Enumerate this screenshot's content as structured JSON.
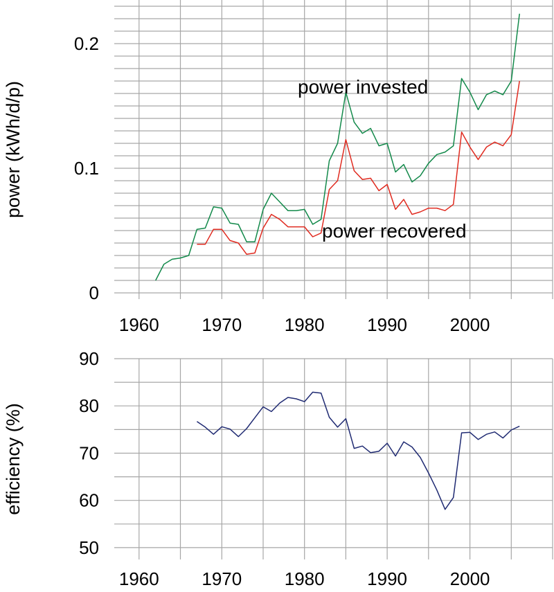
{
  "chart_data": [
    {
      "type": "line",
      "xlabel": "",
      "ylabel": "power (kWh/d/p)",
      "xlim": [
        1957,
        2010
      ],
      "ylim": [
        -0.005,
        0.235
      ],
      "grid": true,
      "xticks": [
        1960,
        1970,
        1980,
        1990,
        2000
      ],
      "yticks": [
        0,
        0.1,
        0.2
      ],
      "xtick_labels": [
        "1960",
        "1970",
        "1980",
        "1990",
        "2000"
      ],
      "ytick_labels": [
        "0",
        "0.1",
        "0.2"
      ],
      "annotations": [
        "power invested",
        "power recovered"
      ],
      "series": [
        {
          "name": "power invested",
          "color": "#12894a",
          "x": [
            1962,
            1963,
            1964,
            1965,
            1966,
            1967,
            1968,
            1969,
            1970,
            1971,
            1972,
            1973,
            1974,
            1975,
            1976,
            1977,
            1978,
            1979,
            1980,
            1981,
            1982,
            1983,
            1984,
            1985,
            1986,
            1987,
            1988,
            1989,
            1990,
            1991,
            1992,
            1993,
            1994,
            1995,
            1996,
            1997,
            1998,
            1999,
            2000,
            2001,
            2002,
            2003,
            2004,
            2005,
            2006
          ],
          "y": [
            0.01,
            0.023,
            0.027,
            0.028,
            0.03,
            0.051,
            0.052,
            0.069,
            0.068,
            0.056,
            0.055,
            0.041,
            0.041,
            0.067,
            0.08,
            0.073,
            0.066,
            0.066,
            0.067,
            0.055,
            0.059,
            0.106,
            0.12,
            0.161,
            0.137,
            0.128,
            0.132,
            0.118,
            0.12,
            0.097,
            0.103,
            0.089,
            0.094,
            0.104,
            0.111,
            0.113,
            0.118,
            0.172,
            0.161,
            0.147,
            0.159,
            0.162,
            0.159,
            0.17,
            0.224
          ]
        },
        {
          "name": "power recovered",
          "color": "#e02a1f",
          "x": [
            1967,
            1968,
            1969,
            1970,
            1971,
            1972,
            1973,
            1974,
            1975,
            1976,
            1977,
            1978,
            1979,
            1980,
            1981,
            1982,
            1983,
            1984,
            1985,
            1986,
            1987,
            1988,
            1989,
            1990,
            1991,
            1992,
            1993,
            1994,
            1995,
            1996,
            1997,
            1998,
            1999,
            2000,
            2001,
            2002,
            2003,
            2004,
            2005,
            2006
          ],
          "y": [
            0.039,
            0.039,
            0.051,
            0.051,
            0.042,
            0.04,
            0.031,
            0.032,
            0.052,
            0.063,
            0.059,
            0.053,
            0.053,
            0.053,
            0.045,
            0.048,
            0.083,
            0.09,
            0.123,
            0.098,
            0.091,
            0.092,
            0.082,
            0.087,
            0.067,
            0.075,
            0.063,
            0.065,
            0.068,
            0.068,
            0.066,
            0.071,
            0.129,
            0.117,
            0.107,
            0.117,
            0.121,
            0.118,
            0.127,
            0.17
          ]
        }
      ]
    },
    {
      "type": "line",
      "xlabel": "",
      "ylabel": "efficiency (%)",
      "xlim": [
        1957,
        2010
      ],
      "ylim": [
        47.5,
        90
      ],
      "grid": true,
      "xticks": [
        1960,
        1970,
        1980,
        1990,
        2000
      ],
      "yticks": [
        50,
        60,
        70,
        80,
        90
      ],
      "xtick_labels": [
        "1960",
        "1970",
        "1980",
        "1990",
        "2000"
      ],
      "ytick_labels": [
        "50",
        "60",
        "70",
        "80",
        "90"
      ],
      "series": [
        {
          "color": "#1f2a72",
          "x": [
            1967,
            1968,
            1969,
            1970,
            1971,
            1972,
            1973,
            1974,
            1975,
            1976,
            1977,
            1978,
            1979,
            1980,
            1981,
            1982,
            1983,
            1984,
            1985,
            1986,
            1987,
            1988,
            1989,
            1990,
            1991,
            1992,
            1993,
            1994,
            1995,
            1996,
            1997,
            1998,
            1999,
            2000,
            2001,
            2002,
            2003,
            2004,
            2005,
            2006
          ],
          "y": [
            76.7,
            75.5,
            74.0,
            75.6,
            75.1,
            73.5,
            75.2,
            77.5,
            79.8,
            78.8,
            80.6,
            81.8,
            81.5,
            80.9,
            82.9,
            82.7,
            77.6,
            75.5,
            77.3,
            71.0,
            71.5,
            70.1,
            70.4,
            72.1,
            69.4,
            72.4,
            71.3,
            69.1,
            65.8,
            62.2,
            58.1,
            60.6,
            74.3,
            74.4,
            72.9,
            74.0,
            74.5,
            73.2,
            74.9,
            75.7
          ]
        }
      ]
    }
  ]
}
